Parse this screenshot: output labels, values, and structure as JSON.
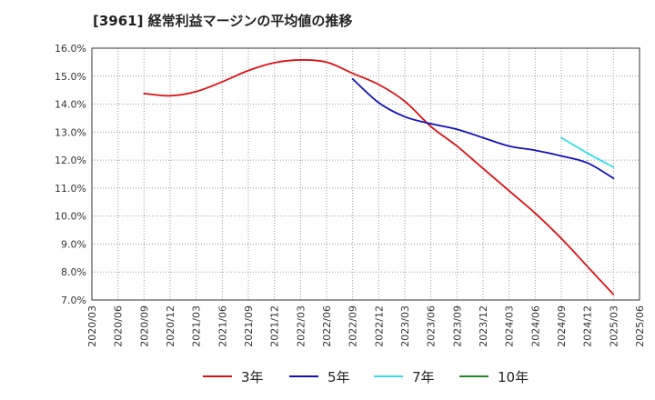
{
  "chart_data": {
    "type": "line",
    "title": "[3961]  経常利益マージンの平均値の推移",
    "xlabel": "",
    "ylabel": "",
    "grid": true,
    "legend_placement": "bottom",
    "x_ticks": [
      "2020/03",
      "2020/06",
      "2020/09",
      "2020/12",
      "2021/03",
      "2021/06",
      "2021/09",
      "2021/12",
      "2022/03",
      "2022/06",
      "2022/09",
      "2022/12",
      "2023/03",
      "2023/06",
      "2023/09",
      "2023/12",
      "2024/03",
      "2024/06",
      "2024/09",
      "2024/12",
      "2025/03",
      "2025/06"
    ],
    "ylim": [
      7.0,
      16.0
    ],
    "y_ticks": [
      "7.0%",
      "8.0%",
      "9.0%",
      "10.0%",
      "11.0%",
      "12.0%",
      "13.0%",
      "14.0%",
      "15.0%",
      "16.0%"
    ],
    "series": [
      {
        "name": "3年",
        "color": "#dd1111",
        "x": [
          "2020/09",
          "2020/12",
          "2021/03",
          "2021/06",
          "2021/09",
          "2021/12",
          "2022/03",
          "2022/06",
          "2022/09",
          "2022/12",
          "2023/03",
          "2023/06",
          "2023/09",
          "2023/12",
          "2024/03",
          "2024/06",
          "2024/09",
          "2024/12",
          "2025/03"
        ],
        "values": [
          14.38,
          14.3,
          14.45,
          14.8,
          15.2,
          15.48,
          15.58,
          15.5,
          15.1,
          14.7,
          14.1,
          13.2,
          12.5,
          11.7,
          10.9,
          10.1,
          9.2,
          8.2,
          7.2
        ]
      },
      {
        "name": "5年",
        "color": "#1111bb",
        "x": [
          "2022/09",
          "2022/12",
          "2023/03",
          "2023/06",
          "2023/09",
          "2023/12",
          "2024/03",
          "2024/06",
          "2024/09",
          "2024/12",
          "2025/03"
        ],
        "values": [
          14.9,
          14.05,
          13.55,
          13.3,
          13.1,
          12.8,
          12.5,
          12.35,
          12.15,
          11.9,
          11.35
        ]
      },
      {
        "name": "7年",
        "color": "#33ddee",
        "x": [
          "2024/09",
          "2024/12",
          "2025/03"
        ],
        "values": [
          12.8,
          12.25,
          11.75
        ]
      },
      {
        "name": "10年",
        "color": "#228822",
        "x": [],
        "values": []
      }
    ]
  }
}
